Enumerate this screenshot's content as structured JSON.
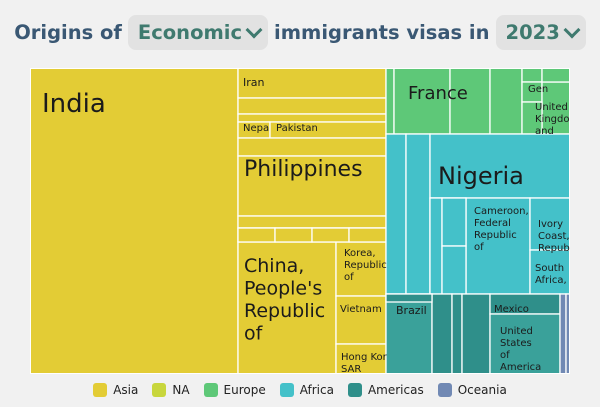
{
  "header": {
    "prefix": "Origins of",
    "category": "Economic",
    "middle": "immigrants visas in",
    "year": "2023"
  },
  "legend": [
    {
      "label": "Asia",
      "color": "#e3cc35"
    },
    {
      "label": "NA",
      "color": "#c8d63c"
    },
    {
      "label": "Europe",
      "color": "#5ec878"
    },
    {
      "label": "Africa",
      "color": "#44c1c9"
    },
    {
      "label": "Americas",
      "color": "#2f8f8a"
    },
    {
      "label": "Oceania",
      "color": "#7189b4"
    }
  ],
  "chart_data": {
    "type": "treemap",
    "title": "Origins of Economic immigrants visas in 2023",
    "labels": [
      {
        "region": "Asia",
        "country": "India"
      },
      {
        "region": "Asia",
        "country": "Iran"
      },
      {
        "region": "Asia",
        "country": "Nepa"
      },
      {
        "region": "Asia",
        "country": "Pakistan"
      },
      {
        "region": "Asia",
        "country": "Philippines"
      },
      {
        "region": "Asia",
        "country": "China, People's Republic of"
      },
      {
        "region": "Asia",
        "country": "Korea, Republic of"
      },
      {
        "region": "Asia",
        "country": "Vietnam"
      },
      {
        "region": "Asia",
        "country": "Hong Kong SAR"
      },
      {
        "region": "Europe",
        "country": "France"
      },
      {
        "region": "Europe",
        "country": "Gen"
      },
      {
        "region": "Europe",
        "country": "United Kingdom"
      },
      {
        "region": "Africa",
        "country": "Nigeria"
      },
      {
        "region": "Africa",
        "country": "Cameroon, Federal Republic of"
      },
      {
        "region": "Africa",
        "country": "Ivory Coast, Republic"
      },
      {
        "region": "Africa",
        "country": "South Africa, Republic"
      },
      {
        "region": "Americas",
        "country": "Brazil"
      },
      {
        "region": "Americas",
        "country": "Mexico"
      },
      {
        "region": "Americas",
        "country": "United States of America"
      }
    ]
  }
}
